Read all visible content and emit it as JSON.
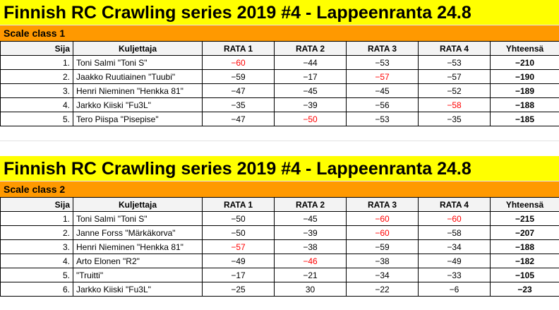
{
  "sections": [
    {
      "title": "Finnish RC Crawling series 2019 #4 - Lappeenranta 24.8",
      "class_label": "Scale class 1",
      "headers": [
        "Sija",
        "Kuljettaja",
        "RATA 1",
        "RATA 2",
        "RATA 3",
        "RATA 4",
        "Yhteensä"
      ],
      "rows": [
        {
          "pos": "1.",
          "name": "Toni Salmi \"Toni S\"",
          "r1": "−60",
          "r2": "−44",
          "r3": "−53",
          "r4": "−53",
          "total": "−210",
          "red": [
            "r1"
          ]
        },
        {
          "pos": "2.",
          "name": "Jaakko Ruutiainen \"Tuubi\"",
          "r1": "−59",
          "r2": "−17",
          "r3": "−57",
          "r4": "−57",
          "total": "−190",
          "red": [
            "r3"
          ]
        },
        {
          "pos": "3.",
          "name": "Henri Nieminen \"Henkka 81\"",
          "r1": "−47",
          "r2": "−45",
          "r3": "−45",
          "r4": "−52",
          "total": "−189",
          "red": []
        },
        {
          "pos": "4.",
          "name": "Jarkko Kiiski \"Fu3L\"",
          "r1": "−35",
          "r2": "−39",
          "r3": "−56",
          "r4": "−58",
          "total": "−188",
          "red": [
            "r4"
          ]
        },
        {
          "pos": "5.",
          "name": "Tero Piispa \"Pisepise\"",
          "r1": "−47",
          "r2": "−50",
          "r3": "−53",
          "r4": "−35",
          "total": "−185",
          "red": [
            "r2"
          ]
        }
      ]
    },
    {
      "title": "Finnish RC Crawling series 2019 #4 - Lappeenranta 24.8",
      "class_label": "Scale class 2",
      "headers": [
        "Sija",
        "Kuljettaja",
        "RATA 1",
        "RATA 2",
        "RATA 3",
        "RATA 4",
        "Yhteensä"
      ],
      "rows": [
        {
          "pos": "1.",
          "name": "Toni Salmi \"Toni S\"",
          "r1": "−50",
          "r2": "−45",
          "r3": "−60",
          "r4": "−60",
          "total": "−215",
          "red": [
            "r3",
            "r4"
          ]
        },
        {
          "pos": "2.",
          "name": "Janne Forss \"Märkäkorva\"",
          "r1": "−50",
          "r2": "−39",
          "r3": "−60",
          "r4": "−58",
          "total": "−207",
          "red": [
            "r3"
          ]
        },
        {
          "pos": "3.",
          "name": "Henri Nieminen \"Henkka 81\"",
          "r1": "−57",
          "r2": "−38",
          "r3": "−59",
          "r4": "−34",
          "total": "−188",
          "red": [
            "r1"
          ]
        },
        {
          "pos": "4.",
          "name": "Arto Elonen \"R2\"",
          "r1": "−49",
          "r2": "−46",
          "r3": "−38",
          "r4": "−49",
          "total": "−182",
          "red": [
            "r2"
          ]
        },
        {
          "pos": "5.",
          "name": "\"Truitti\"",
          "r1": "−17",
          "r2": "−21",
          "r3": "−34",
          "r4": "−33",
          "total": "−105",
          "red": []
        },
        {
          "pos": "6.",
          "name": "Jarkko Kiiski \"Fu3L\"",
          "r1": "−25",
          "r2": "30",
          "r3": "−22",
          "r4": "−6",
          "total": "−23",
          "red": []
        }
      ]
    }
  ],
  "colors": {
    "title_bg": "#ffff00",
    "class_bg": "#ff9900",
    "highlight": "#ff0000"
  }
}
